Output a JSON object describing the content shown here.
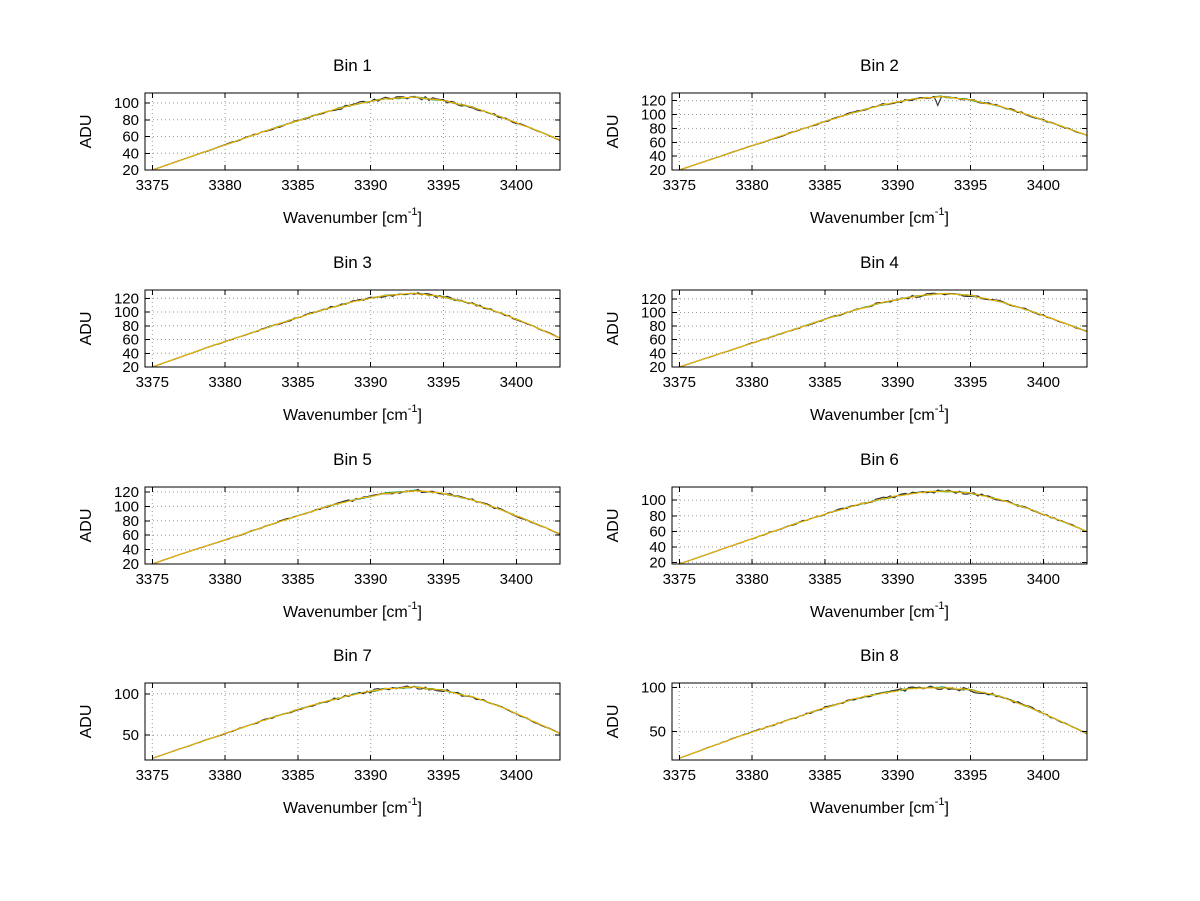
{
  "figure": {
    "background": "#ffffff",
    "rows": 4,
    "columns": 2
  },
  "chart_data": [
    {
      "type": "line",
      "title": "Bin 1",
      "ylabel": "ADU",
      "xlabel_base": "Wavenumber [cm",
      "xlabel_sup": "-1",
      "xlabel_close": "]",
      "xlim": [
        3374.5,
        3403
      ],
      "ylim": [
        20,
        112
      ],
      "xticks": [
        3375,
        3380,
        3385,
        3390,
        3395,
        3400
      ],
      "yticks": [
        20,
        40,
        60,
        80,
        100
      ],
      "grid": true,
      "x": [
        3375,
        3377,
        3379,
        3381,
        3383,
        3385,
        3387,
        3389,
        3391,
        3393,
        3395,
        3397,
        3399,
        3401,
        3403
      ],
      "values": [
        20,
        32,
        44,
        56,
        68,
        79,
        90,
        99,
        105,
        107,
        103,
        95,
        83,
        70,
        56
      ],
      "series": [
        {
          "name": "trace-cyan",
          "color": "#1fb0a8",
          "noise": 1.0
        },
        {
          "name": "trace-green",
          "color": "#2ca02c",
          "noise": 1.0
        },
        {
          "name": "trace-dark",
          "color": "#333333",
          "noise": 2.4
        },
        {
          "name": "trace-yellow",
          "color": "#f7b500",
          "noise": 0.7
        }
      ]
    },
    {
      "type": "line",
      "title": "Bin 2",
      "ylabel": "ADU",
      "xlabel_base": "Wavenumber [cm",
      "xlabel_sup": "-1",
      "xlabel_close": "]",
      "xlim": [
        3374.5,
        3403
      ],
      "ylim": [
        20,
        131
      ],
      "xticks": [
        3375,
        3380,
        3385,
        3390,
        3395,
        3400
      ],
      "yticks": [
        20,
        40,
        60,
        80,
        100,
        120
      ],
      "grid": true,
      "x": [
        3375,
        3377,
        3379,
        3381,
        3383,
        3385,
        3387,
        3389,
        3391,
        3393,
        3395,
        3397,
        3399,
        3401,
        3403
      ],
      "values": [
        20,
        34,
        48,
        62,
        76,
        90,
        103,
        114,
        122,
        126,
        121,
        112,
        99,
        85,
        70
      ],
      "spike": {
        "x": 3392.8,
        "dy": -13,
        "series": "trace-dark"
      },
      "series": [
        {
          "name": "trace-cyan",
          "color": "#1fb0a8",
          "noise": 1.0
        },
        {
          "name": "trace-green",
          "color": "#2ca02c",
          "noise": 1.0
        },
        {
          "name": "trace-dark",
          "color": "#333333",
          "noise": 2.4
        },
        {
          "name": "trace-yellow",
          "color": "#f7b500",
          "noise": 0.7
        }
      ]
    },
    {
      "type": "line",
      "title": "Bin 3",
      "ylabel": "ADU",
      "xlabel_base": "Wavenumber [cm",
      "xlabel_sup": "-1",
      "xlabel_close": "]",
      "xlim": [
        3374.5,
        3403
      ],
      "ylim": [
        20,
        132
      ],
      "xticks": [
        3375,
        3380,
        3385,
        3390,
        3395,
        3400
      ],
      "yticks": [
        20,
        40,
        60,
        80,
        100,
        120
      ],
      "grid": true,
      "x": [
        3375,
        3377,
        3379,
        3381,
        3383,
        3385,
        3387,
        3389,
        3391,
        3393,
        3395,
        3397,
        3399,
        3401,
        3403
      ],
      "values": [
        20,
        35,
        50,
        64,
        78,
        92,
        105,
        116,
        124,
        127,
        122,
        112,
        98,
        81,
        62
      ],
      "series": [
        {
          "name": "trace-cyan",
          "color": "#1fb0a8",
          "noise": 1.0
        },
        {
          "name": "trace-green",
          "color": "#2ca02c",
          "noise": 1.0
        },
        {
          "name": "trace-dark",
          "color": "#333333",
          "noise": 2.4
        },
        {
          "name": "trace-yellow",
          "color": "#f7b500",
          "noise": 0.7
        }
      ]
    },
    {
      "type": "line",
      "title": "Bin 4",
      "ylabel": "ADU",
      "xlabel_base": "Wavenumber [cm",
      "xlabel_sup": "-1",
      "xlabel_close": "]",
      "xlim": [
        3374.5,
        3403
      ],
      "ylim": [
        20,
        133
      ],
      "xticks": [
        3375,
        3380,
        3385,
        3390,
        3395,
        3400
      ],
      "yticks": [
        20,
        40,
        60,
        80,
        100,
        120
      ],
      "grid": true,
      "x": [
        3375,
        3377,
        3379,
        3381,
        3383,
        3385,
        3387,
        3389,
        3391,
        3393,
        3395,
        3397,
        3399,
        3401,
        3403
      ],
      "values": [
        20,
        34,
        48,
        62,
        76,
        90,
        103,
        115,
        123,
        128,
        125,
        116,
        103,
        88,
        72
      ],
      "series": [
        {
          "name": "trace-cyan",
          "color": "#1fb0a8",
          "noise": 1.0
        },
        {
          "name": "trace-green",
          "color": "#2ca02c",
          "noise": 1.0
        },
        {
          "name": "trace-dark",
          "color": "#333333",
          "noise": 2.4
        },
        {
          "name": "trace-yellow",
          "color": "#f7b500",
          "noise": 0.7
        }
      ]
    },
    {
      "type": "line",
      "title": "Bin 5",
      "ylabel": "ADU",
      "xlabel_base": "Wavenumber [cm",
      "xlabel_sup": "-1",
      "xlabel_close": "]",
      "xlim": [
        3374.5,
        3403
      ],
      "ylim": [
        20,
        127
      ],
      "xticks": [
        3375,
        3380,
        3385,
        3390,
        3395,
        3400
      ],
      "yticks": [
        20,
        40,
        60,
        80,
        100,
        120
      ],
      "grid": true,
      "x": [
        3375,
        3377,
        3379,
        3381,
        3383,
        3385,
        3387,
        3389,
        3391,
        3393,
        3395,
        3397,
        3399,
        3401,
        3403
      ],
      "values": [
        20,
        34,
        47,
        60,
        74,
        87,
        100,
        110,
        118,
        122,
        118,
        109,
        95,
        79,
        62
      ],
      "series": [
        {
          "name": "trace-cyan",
          "color": "#1fb0a8",
          "noise": 1.0
        },
        {
          "name": "trace-green",
          "color": "#2ca02c",
          "noise": 1.0
        },
        {
          "name": "trace-dark",
          "color": "#333333",
          "noise": 2.4
        },
        {
          "name": "trace-yellow",
          "color": "#f7b500",
          "noise": 0.7
        }
      ]
    },
    {
      "type": "line",
      "title": "Bin 6",
      "ylabel": "ADU",
      "xlabel_base": "Wavenumber [cm",
      "xlabel_sup": "-1",
      "xlabel_close": "]",
      "xlim": [
        3374.5,
        3403
      ],
      "ylim": [
        18,
        117
      ],
      "xticks": [
        3375,
        3380,
        3385,
        3390,
        3395,
        3400
      ],
      "yticks": [
        20,
        40,
        60,
        80,
        100
      ],
      "grid": true,
      "x": [
        3375,
        3377,
        3379,
        3381,
        3383,
        3385,
        3387,
        3389,
        3391,
        3393,
        3395,
        3397,
        3399,
        3401,
        3403
      ],
      "values": [
        18,
        31,
        44,
        57,
        70,
        82,
        93,
        102,
        109,
        112,
        109,
        101,
        89,
        75,
        60
      ],
      "series": [
        {
          "name": "trace-cyan",
          "color": "#1fb0a8",
          "noise": 1.0
        },
        {
          "name": "trace-green",
          "color": "#2ca02c",
          "noise": 1.0
        },
        {
          "name": "trace-dark",
          "color": "#333333",
          "noise": 2.4
        },
        {
          "name": "trace-yellow",
          "color": "#f7b500",
          "noise": 0.7
        }
      ]
    },
    {
      "type": "line",
      "title": "Bin 7",
      "ylabel": "ADU",
      "xlabel_base": "Wavenumber [cm",
      "xlabel_sup": "-1",
      "xlabel_close": "]",
      "xlim": [
        3374.5,
        3403
      ],
      "ylim": [
        20,
        113
      ],
      "xticks": [
        3375,
        3380,
        3385,
        3390,
        3395,
        3400
      ],
      "yticks": [
        50,
        100
      ],
      "grid": true,
      "x": [
        3375,
        3377,
        3379,
        3381,
        3383,
        3385,
        3387,
        3389,
        3391,
        3393,
        3395,
        3397,
        3399,
        3401,
        3403
      ],
      "values": [
        22,
        34,
        46,
        58,
        70,
        81,
        91,
        100,
        106,
        108,
        104,
        96,
        84,
        68,
        52
      ],
      "series": [
        {
          "name": "trace-cyan",
          "color": "#1fb0a8",
          "noise": 1.0
        },
        {
          "name": "trace-green",
          "color": "#2ca02c",
          "noise": 1.0
        },
        {
          "name": "trace-dark",
          "color": "#333333",
          "noise": 2.4
        },
        {
          "name": "trace-yellow",
          "color": "#f7b500",
          "noise": 0.7
        }
      ]
    },
    {
      "type": "line",
      "title": "Bin 8",
      "ylabel": "ADU",
      "xlabel_base": "Wavenumber [cm",
      "xlabel_sup": "-1",
      "xlabel_close": "]",
      "xlim": [
        3374.5,
        3403
      ],
      "ylim": [
        18,
        105
      ],
      "xticks": [
        3375,
        3380,
        3385,
        3390,
        3395,
        3400
      ],
      "yticks": [
        50,
        100
      ],
      "grid": true,
      "x": [
        3375,
        3377,
        3379,
        3381,
        3383,
        3385,
        3387,
        3389,
        3391,
        3393,
        3395,
        3397,
        3399,
        3401,
        3403
      ],
      "values": [
        20,
        32,
        44,
        55,
        66,
        77,
        87,
        94,
        99,
        100,
        97,
        90,
        78,
        63,
        48
      ],
      "series": [
        {
          "name": "trace-cyan",
          "color": "#1fb0a8",
          "noise": 1.0
        },
        {
          "name": "trace-green",
          "color": "#2ca02c",
          "noise": 1.0
        },
        {
          "name": "trace-dark",
          "color": "#333333",
          "noise": 2.4
        },
        {
          "name": "trace-yellow",
          "color": "#f7b500",
          "noise": 0.7
        }
      ]
    }
  ]
}
